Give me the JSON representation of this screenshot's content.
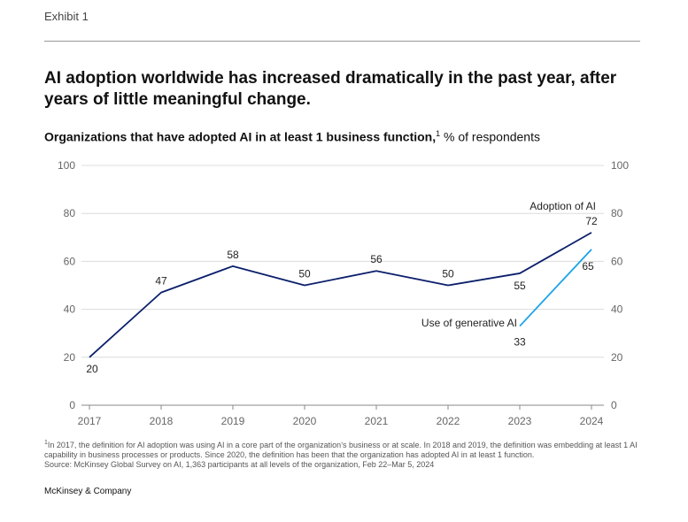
{
  "exhibit_label": "Exhibit 1",
  "headline": "AI adoption worldwide has increased dramatically in the past year, after years of little meaningful change.",
  "subtitle": {
    "bold": "Organizations that have adopted AI in at least 1 business function,",
    "footnote_ref": "1",
    "rest": " % of respondents"
  },
  "chart_data": {
    "type": "line",
    "title": "Organizations that have adopted AI in at least 1 business function, % of respondents",
    "xlabel": "",
    "ylabel": "% of respondents",
    "ylim": [
      0,
      100
    ],
    "y_ticks": [
      "0",
      "20",
      "40",
      "60",
      "80",
      "100"
    ],
    "x": [
      "2017",
      "2018",
      "2019",
      "2020",
      "2021",
      "2022",
      "2023",
      "2024"
    ],
    "grid": true,
    "series": [
      {
        "name": "Adoption of AI",
        "color": "#0b1f6b",
        "x": [
          "2017",
          "2018",
          "2019",
          "2020",
          "2021",
          "2022",
          "2023",
          "2024"
        ],
        "values": [
          20,
          47,
          58,
          50,
          56,
          50,
          55,
          72
        ]
      },
      {
        "name": "Use of generative AI",
        "color": "#1aa3e8",
        "x": [
          "2023",
          "2024"
        ],
        "values": [
          33,
          65
        ]
      }
    ]
  },
  "footnotes": {
    "note_marker": "1",
    "note_text": "In 2017, the definition for AI adoption was using AI in a core part of the organization’s business or at scale. In 2018 and 2019, the definition was embedding at least 1 AI capability in business processes or products. Since 2020, the definition has been that the organization has adopted AI in at least 1 function.",
    "source": "Source: McKinsey Global Survey on AI, 1,363 participants at all levels of the organization, Feb 22–Mar 5, 2024"
  },
  "brand": "McKinsey & Company",
  "colors": {
    "grid": "#dcdcdc",
    "axis": "#888888"
  }
}
